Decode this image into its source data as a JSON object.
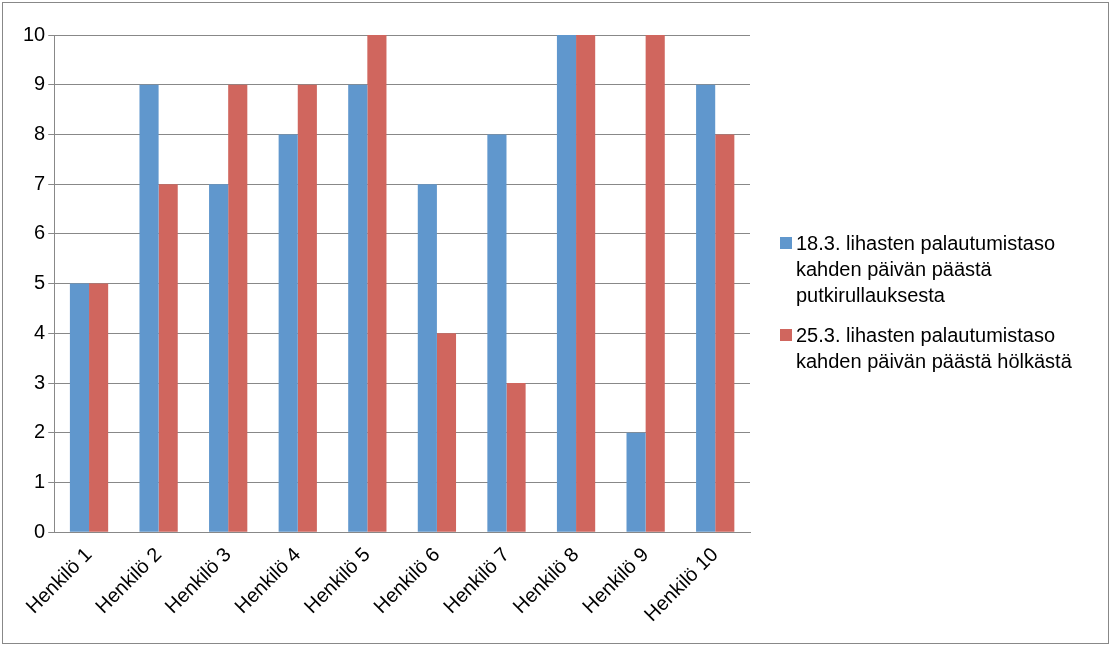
{
  "chart_data": {
    "type": "bar",
    "categories": [
      "Henkilö 1",
      "Henkilö 2",
      "Henkilö 3",
      "Henkilö 4",
      "Henkilö 5",
      "Henkilö 6",
      "Henkilö 7",
      "Henkilö 8",
      "Henkilö 9",
      "Henkilö 10"
    ],
    "series": [
      {
        "name": "18.3. lihasten palautumistaso kahden päivän päästä putkirullauksesta",
        "color": "#6097cd",
        "values": [
          5,
          9,
          7,
          8,
          9,
          7,
          8,
          10,
          2,
          9
        ]
      },
      {
        "name": "25.3. lihasten palautumistaso kahden päivän päästä hölkästä",
        "color": "#d0665e",
        "values": [
          5,
          7,
          9,
          9,
          10,
          4,
          3,
          10,
          10,
          8
        ]
      }
    ],
    "ylim": [
      0,
      10
    ],
    "yticks": [
      0,
      1,
      2,
      3,
      4,
      5,
      6,
      7,
      8,
      9,
      10
    ],
    "grid": "y",
    "legend": "right"
  }
}
